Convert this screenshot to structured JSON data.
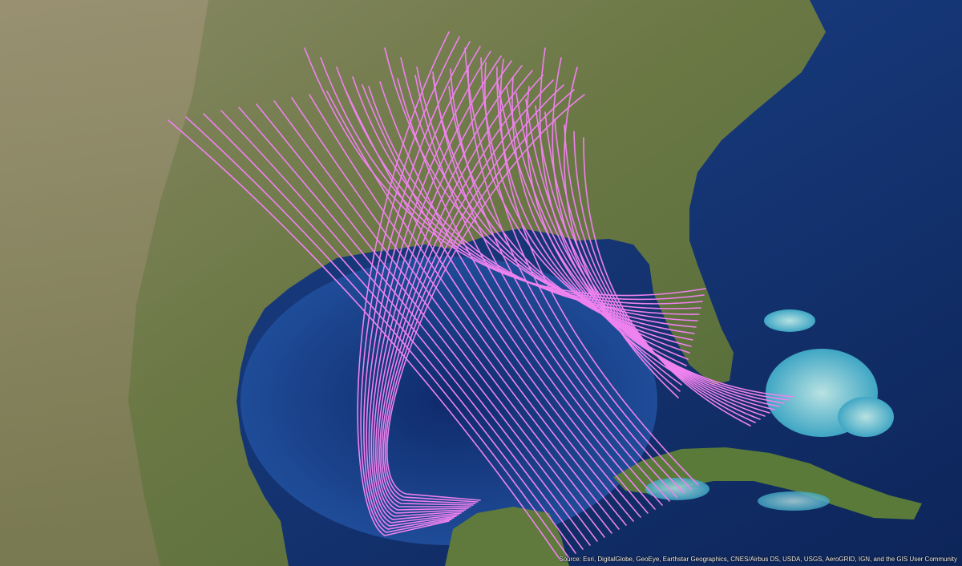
{
  "map": {
    "basemap": "satellite imagery",
    "track_color": "#ee82ee",
    "ocean_color": "#1b3f85",
    "land_color": "#6f7a45"
  },
  "attribution": "Source: Esri, DigitalGlobe, GeoEye, Earthstar Geographics, CNES/Airbus DS, USDA, USGS, AeroGRID, IGN, and the GIS User Community"
}
